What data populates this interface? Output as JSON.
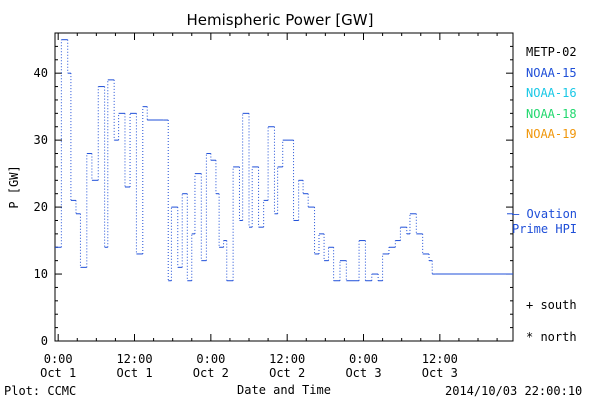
{
  "chart_data": {
    "type": "line",
    "title": "Hemispheric Power [GW]",
    "ylabel": "P [GW]",
    "xlabel": "Date and Time",
    "ylim": [
      0,
      46
    ],
    "yticks": [
      0,
      10,
      20,
      30,
      40
    ],
    "xlim": [
      -0.5,
      71.5
    ],
    "xticks": [
      {
        "x": 0,
        "top": "0:00",
        "bottom": "Oct 1"
      },
      {
        "x": 12,
        "top": "12:00",
        "bottom": "Oct 1"
      },
      {
        "x": 24,
        "top": "0:00",
        "bottom": "Oct 2"
      },
      {
        "x": 36,
        "top": "12:00",
        "bottom": "Oct 2"
      },
      {
        "x": 48,
        "top": "0:00",
        "bottom": "Oct 3"
      },
      {
        "x": 60,
        "top": "12:00",
        "bottom": "Oct 3"
      }
    ],
    "series": [
      {
        "name": "Ovation Prime HPI",
        "color": "#1f4fd8",
        "points": [
          [
            -0.5,
            14
          ],
          [
            0.5,
            45
          ],
          [
            1.5,
            40
          ],
          [
            2.0,
            21
          ],
          [
            2.8,
            19
          ],
          [
            3.5,
            11
          ],
          [
            4.5,
            28
          ],
          [
            5.3,
            24
          ],
          [
            6.3,
            38
          ],
          [
            7.3,
            14
          ],
          [
            7.8,
            39
          ],
          [
            8.8,
            30
          ],
          [
            9.5,
            34
          ],
          [
            10.5,
            23
          ],
          [
            11.3,
            34
          ],
          [
            12.3,
            13
          ],
          [
            13.3,
            35
          ],
          [
            14.0,
            33
          ],
          [
            16.5,
            33
          ],
          [
            17.3,
            9
          ],
          [
            17.8,
            20
          ],
          [
            18.8,
            11
          ],
          [
            19.5,
            22
          ],
          [
            20.3,
            9
          ],
          [
            21.0,
            16
          ],
          [
            21.5,
            25
          ],
          [
            22.5,
            12
          ],
          [
            23.3,
            28
          ],
          [
            24.0,
            27
          ],
          [
            24.8,
            22
          ],
          [
            25.3,
            14
          ],
          [
            26.0,
            15
          ],
          [
            26.5,
            9
          ],
          [
            27.5,
            26
          ],
          [
            28.5,
            18
          ],
          [
            29.0,
            34
          ],
          [
            30.0,
            17
          ],
          [
            30.5,
            26
          ],
          [
            31.5,
            17
          ],
          [
            32.3,
            21
          ],
          [
            33.0,
            32
          ],
          [
            34.0,
            19
          ],
          [
            34.5,
            26
          ],
          [
            35.3,
            30
          ],
          [
            37.0,
            18
          ],
          [
            37.8,
            24
          ],
          [
            38.5,
            22
          ],
          [
            39.3,
            20
          ],
          [
            40.3,
            13
          ],
          [
            41.0,
            16
          ],
          [
            41.8,
            12
          ],
          [
            42.5,
            14
          ],
          [
            43.3,
            9
          ],
          [
            44.3,
            12
          ],
          [
            45.3,
            9
          ],
          [
            47.3,
            15
          ],
          [
            48.3,
            9
          ],
          [
            49.3,
            10
          ],
          [
            50.3,
            9
          ],
          [
            51.0,
            13
          ],
          [
            52.0,
            14
          ],
          [
            53.0,
            15
          ],
          [
            53.8,
            17
          ],
          [
            54.8,
            16
          ],
          [
            55.3,
            19
          ],
          [
            56.3,
            16
          ],
          [
            57.3,
            13
          ],
          [
            58.3,
            12
          ],
          [
            58.8,
            10
          ],
          [
            59.3,
            10
          ]
        ]
      }
    ],
    "annotations": {
      "hpi_marker": "— Ovation",
      "hpi_marker_value": 19
    }
  },
  "legend": {
    "items": [
      {
        "label": "METP-02",
        "color": "#000000"
      },
      {
        "label": "NOAA-15",
        "color": "#1f4fd8"
      },
      {
        "label": "NOAA-16",
        "color": "#19c8e6"
      },
      {
        "label": "NOAA-18",
        "color": "#21d86e"
      },
      {
        "label": "NOAA-19",
        "color": "#f0960a"
      }
    ],
    "hpi_line1": "— Ovation",
    "hpi_line2": "Prime HPI",
    "south": "+ south",
    "north": "* north"
  },
  "footer": {
    "plot_label": "Plot: CCMC",
    "timestamp": "2014/10/03 22:00:10"
  }
}
